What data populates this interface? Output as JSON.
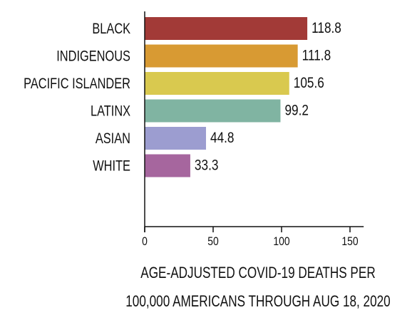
{
  "chart_data": {
    "type": "bar",
    "orientation": "horizontal",
    "categories": [
      "BLACK",
      "INDIGENOUS",
      "PACIFIC ISLANDER",
      "LATINX",
      "ASIAN",
      "WHITE"
    ],
    "values": [
      118.8,
      111.8,
      105.6,
      99.2,
      44.8,
      33.3
    ],
    "value_labels": [
      "118.8",
      "111.8",
      "105.6",
      "99.2",
      "44.8",
      "33.3"
    ],
    "colors": [
      "#a23a37",
      "#d89a33",
      "#d9c94f",
      "#80b4a2",
      "#9c9dd0",
      "#a6669e"
    ],
    "xlabel_line1": "AGE-ADJUSTED COVID-19 DEATHS PER",
    "xlabel_line2": "100,000 AMERICANS THROUGH AUG 18, 2020",
    "xlim": [
      0,
      160
    ],
    "xticks": [
      0,
      50,
      100,
      150
    ],
    "grid": false,
    "legend": "none"
  }
}
